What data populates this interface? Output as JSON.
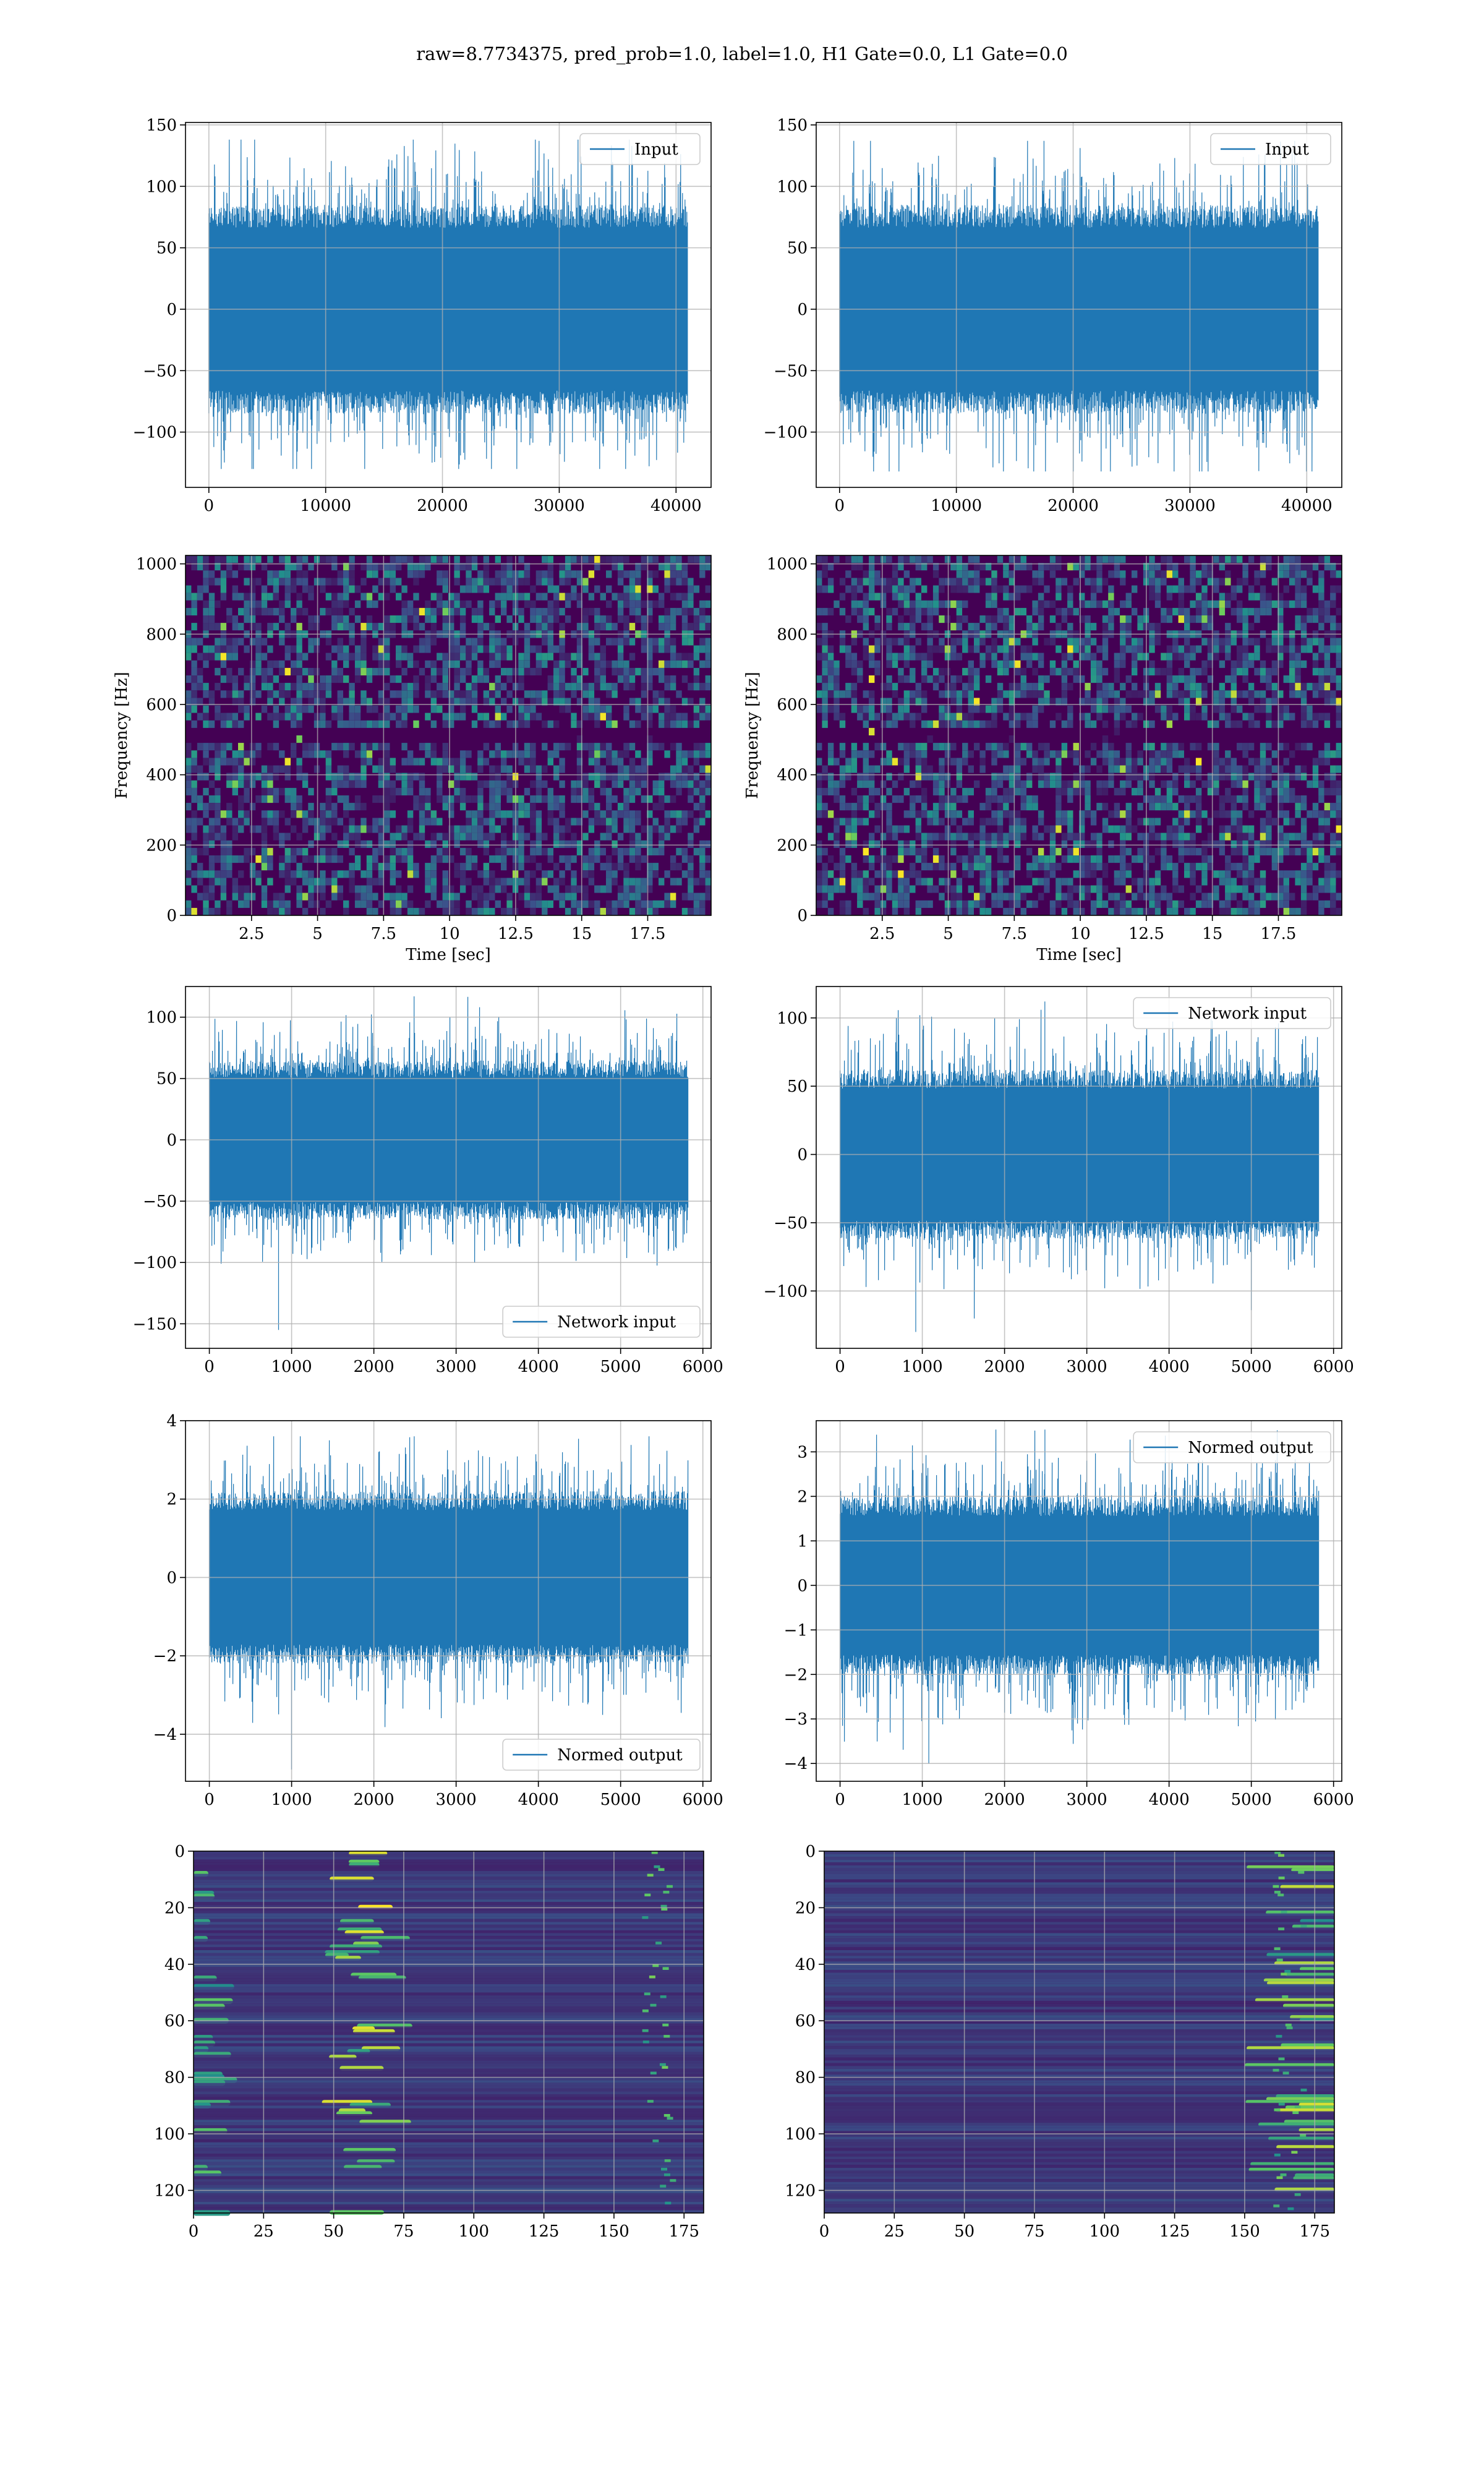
{
  "figure": {
    "title": "raw=8.7734375, pred_prob=1.0, label=1.0, H1 Gate=0.0, L1 Gate=0.0"
  },
  "colors": {
    "series": "#1f77b4",
    "grid": "#b0b0b0",
    "viridis": [
      "#440154",
      "#3b528b",
      "#21918c",
      "#5ec962",
      "#fde725"
    ]
  },
  "chart_data": [
    {
      "id": "input-h1",
      "type": "line",
      "row": 0,
      "col": 0,
      "legend": [
        "Input"
      ],
      "legend_loc": "upper right",
      "xlim": [
        -2000,
        43000
      ],
      "ylim": [
        -145,
        152
      ],
      "xticks": [
        0,
        10000,
        20000,
        30000,
        40000
      ],
      "yticks": [
        -100,
        -50,
        0,
        50,
        100,
        150
      ],
      "n_points": 40960,
      "core_amplitude": 85,
      "peak_max": 138,
      "peak_min": -130,
      "grid": true
    },
    {
      "id": "input-l1",
      "type": "line",
      "row": 0,
      "col": 1,
      "legend": [
        "Input"
      ],
      "legend_loc": "upper right",
      "xlim": [
        -2000,
        43000
      ],
      "ylim": [
        -145,
        152
      ],
      "xticks": [
        0,
        10000,
        20000,
        30000,
        40000
      ],
      "yticks": [
        -100,
        -50,
        0,
        50,
        100,
        150
      ],
      "n_points": 40960,
      "core_amplitude": 85,
      "peak_max": 137,
      "peak_min": -132,
      "grid": true
    },
    {
      "id": "spectrogram-h1",
      "type": "heatmap",
      "row": 1,
      "col": 0,
      "xlabel": "Time [sec]",
      "ylabel": "Frequency [Hz]",
      "xlim": [
        0,
        19.9
      ],
      "ylim": [
        0,
        1024
      ],
      "xticks": [
        2.5,
        5.0,
        7.5,
        10.0,
        12.5,
        15.0,
        17.5
      ],
      "yticks": [
        0,
        200,
        400,
        600,
        800,
        1000
      ],
      "colormap": "viridis",
      "grid": true
    },
    {
      "id": "spectrogram-l1",
      "type": "heatmap",
      "row": 1,
      "col": 1,
      "xlabel": "Time [sec]",
      "ylabel": "Frequency [Hz]",
      "xlim": [
        0,
        19.9
      ],
      "ylim": [
        0,
        1024
      ],
      "xticks": [
        2.5,
        5.0,
        7.5,
        10.0,
        12.5,
        15.0,
        17.5
      ],
      "yticks": [
        0,
        200,
        400,
        600,
        800,
        1000
      ],
      "colormap": "viridis",
      "grid": true
    },
    {
      "id": "network-input-h1",
      "type": "line",
      "row": 2,
      "col": 0,
      "legend": [
        "Network input"
      ],
      "legend_loc": "lower right",
      "xlim": [
        -290,
        6100
      ],
      "ylim": [
        -170,
        125
      ],
      "xticks": [
        0,
        1000,
        2000,
        3000,
        4000,
        5000,
        6000
      ],
      "yticks": [
        -150,
        -100,
        -50,
        0,
        50,
        100
      ],
      "n_points": 5820,
      "core_amplitude": 65,
      "peak_max": 117,
      "peak_min": -155,
      "grid": true
    },
    {
      "id": "network-input-l1",
      "type": "line",
      "row": 2,
      "col": 1,
      "legend": [
        "Network input"
      ],
      "legend_loc": "upper right",
      "xlim": [
        -290,
        6100
      ],
      "ylim": [
        -142,
        123
      ],
      "xticks": [
        0,
        1000,
        2000,
        3000,
        4000,
        5000,
        6000
      ],
      "yticks": [
        -100,
        -50,
        0,
        50,
        100
      ],
      "n_points": 5820,
      "core_amplitude": 62,
      "peak_max": 112,
      "peak_min": -130,
      "grid": true
    },
    {
      "id": "normed-output-h1",
      "type": "line",
      "row": 3,
      "col": 0,
      "legend": [
        "Normed output"
      ],
      "legend_loc": "lower right",
      "xlim": [
        -290,
        6100
      ],
      "ylim": [
        -5.2,
        4.0
      ],
      "xticks": [
        0,
        1000,
        2000,
        3000,
        4000,
        5000,
        6000
      ],
      "yticks": [
        -4,
        -2,
        0,
        2,
        4
      ],
      "n_points": 5820,
      "core_amplitude": 2.2,
      "peak_max": 3.6,
      "peak_min": -4.9,
      "grid": true
    },
    {
      "id": "normed-output-l1",
      "type": "line",
      "row": 3,
      "col": 1,
      "legend": [
        "Normed output"
      ],
      "legend_loc": "upper right",
      "xlim": [
        -290,
        6100
      ],
      "ylim": [
        -4.4,
        3.7
      ],
      "xticks": [
        0,
        1000,
        2000,
        3000,
        4000,
        5000,
        6000
      ],
      "yticks": [
        -4,
        -3,
        -2,
        -1,
        0,
        1,
        2,
        3
      ],
      "n_points": 5820,
      "core_amplitude": 2.0,
      "peak_max": 3.5,
      "peak_min": -4.0,
      "grid": true
    },
    {
      "id": "feature-map-h1",
      "type": "heatmap",
      "row": 4,
      "col": 0,
      "xlim": [
        0,
        182
      ],
      "ylim": [
        128,
        0
      ],
      "xticks": [
        0,
        25,
        50,
        75,
        100,
        125,
        150,
        175
      ],
      "yticks": [
        0,
        20,
        40,
        60,
        80,
        100,
        120
      ],
      "colormap": "viridis",
      "grid": true
    },
    {
      "id": "feature-map-l1",
      "type": "heatmap",
      "row": 4,
      "col": 1,
      "xlim": [
        0,
        182
      ],
      "ylim": [
        128,
        0
      ],
      "xticks": [
        0,
        25,
        50,
        75,
        100,
        125,
        150,
        175
      ],
      "yticks": [
        0,
        20,
        40,
        60,
        80,
        100,
        120
      ],
      "colormap": "viridis",
      "grid": true
    }
  ]
}
